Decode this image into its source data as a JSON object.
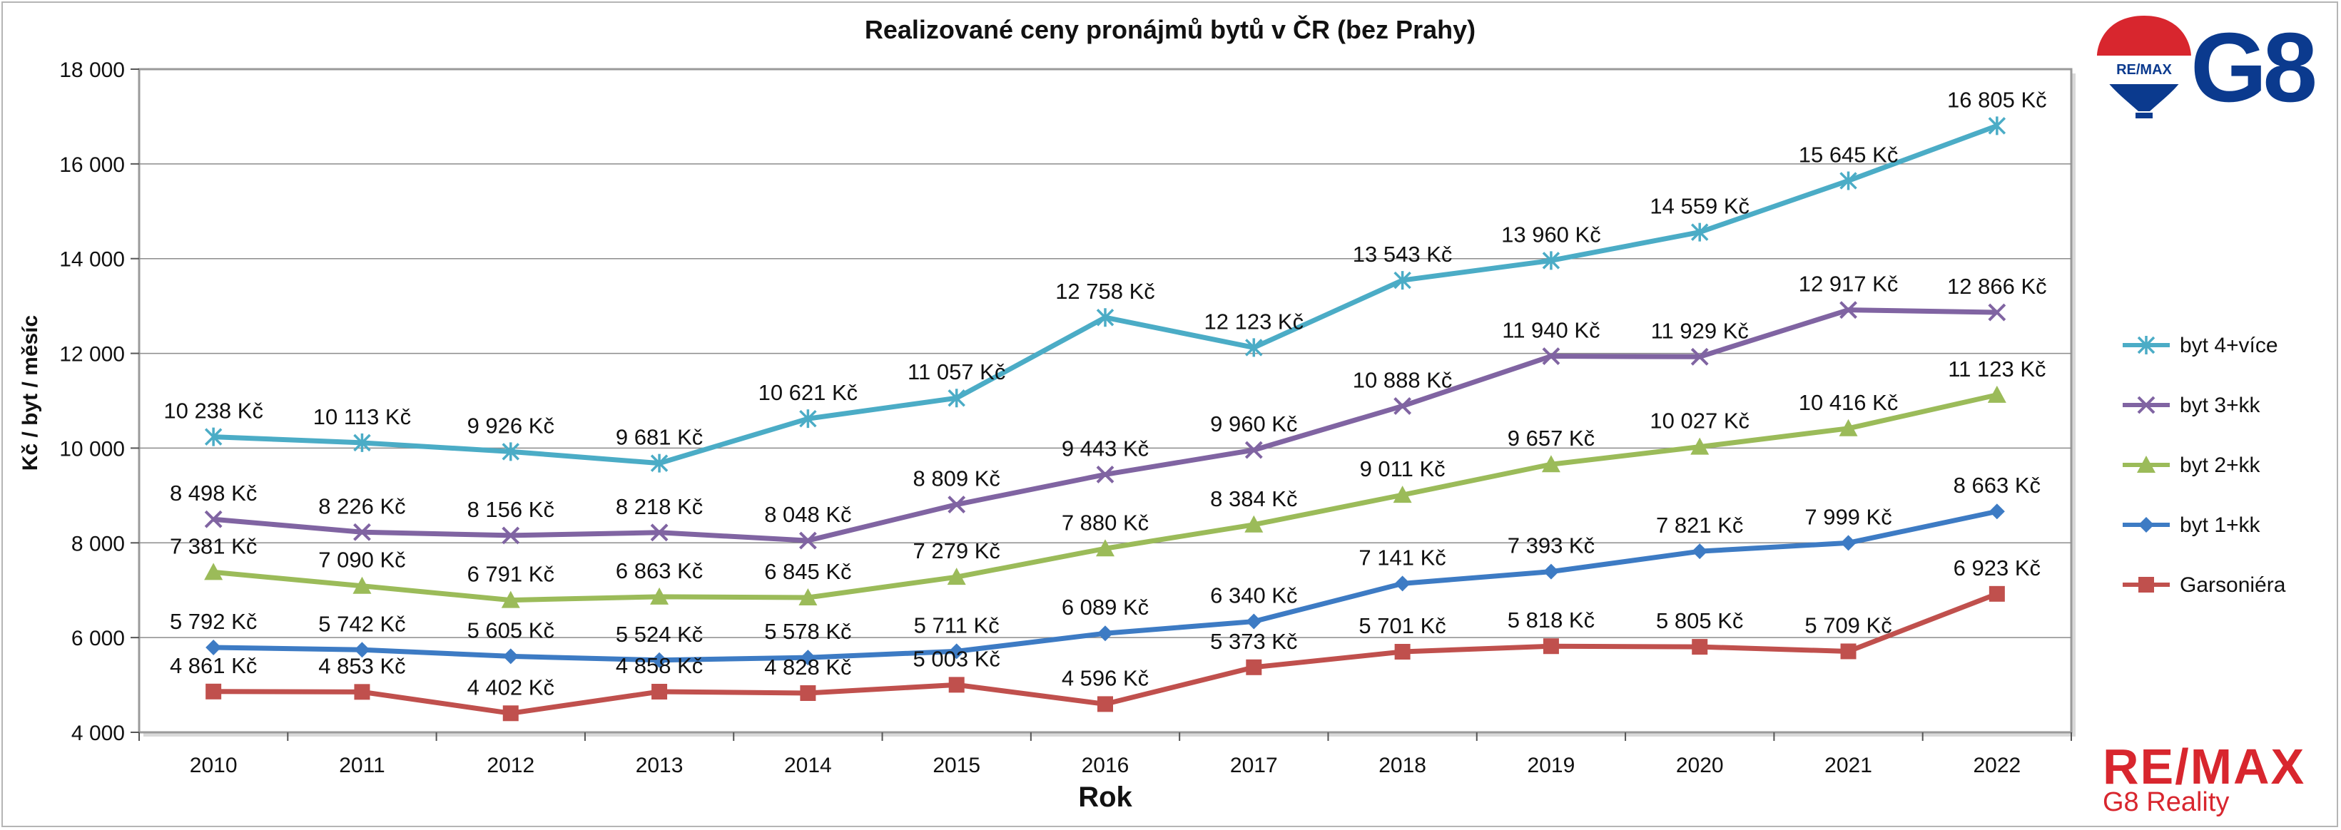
{
  "brand": {
    "top_text": "G8",
    "balloon_text": "RE/MAX",
    "bottom_text": "RE/MAX",
    "bottom_sub": "G8 Reality",
    "colors": {
      "remax_red": "#d8262e",
      "remax_blue": "#0b3a8e"
    }
  },
  "chart_data": {
    "type": "line",
    "title": "Realizované ceny pronájmů bytů v ČR (bez Prahy)",
    "xlabel": "Rok",
    "ylabel": "Kč / byt / měsíc",
    "ylim": [
      4000,
      18000
    ],
    "yticks": [
      4000,
      6000,
      8000,
      10000,
      12000,
      14000,
      16000,
      18000
    ],
    "ytick_labels": [
      "4 000",
      "6 000",
      "8 000",
      "10 000",
      "12 000",
      "14 000",
      "16 000",
      "18 000"
    ],
    "grid": true,
    "legend_position": "right",
    "categories": [
      "2010",
      "2011",
      "2012",
      "2013",
      "2014",
      "2015",
      "2016",
      "2017",
      "2018",
      "2019",
      "2020",
      "2021",
      "2022"
    ],
    "series": [
      {
        "name": "byt 4+více",
        "color": "#4bacc6",
        "marker": "star",
        "values": [
          10238,
          10113,
          9926,
          9681,
          10621,
          11057,
          12758,
          12123,
          13543,
          13960,
          14559,
          15645,
          16805
        ],
        "labels": [
          "10 238 Kč",
          "10 113 Kč",
          "9 926 Kč",
          "9 681 Kč",
          "10 621 Kč",
          "11 057 Kč",
          "12 758 Kč",
          "12 123 Kč",
          "13 543 Kč",
          "13 960 Kč",
          "14 559 Kč",
          "15 645 Kč",
          "16 805 Kč"
        ]
      },
      {
        "name": "byt 3+kk",
        "color": "#8064a2",
        "marker": "x",
        "values": [
          8498,
          8226,
          8156,
          8218,
          8048,
          8809,
          9443,
          9960,
          10888,
          11940,
          11929,
          12917,
          12866
        ],
        "labels": [
          "8 498 Kč",
          "8 226 Kč",
          "8 156 Kč",
          "8 218 Kč",
          "8 048 Kč",
          "8 809 Kč",
          "9 443 Kč",
          "9 960 Kč",
          "10 888 Kč",
          "11 940 Kč",
          "11 929 Kč",
          "12 917 Kč",
          "12 866 Kč"
        ]
      },
      {
        "name": "byt 2+kk",
        "color": "#9bbb59",
        "marker": "triangle",
        "values": [
          7381,
          7090,
          6791,
          6863,
          6845,
          7279,
          7880,
          8384,
          9011,
          9657,
          10027,
          10416,
          11123
        ],
        "labels": [
          "7 381 Kč",
          "7 090 Kč",
          "6 791 Kč",
          "6 863 Kč",
          "6 845 Kč",
          "7 279 Kč",
          "7 880 Kč",
          "8 384 Kč",
          "9 011 Kč",
          "9 657 Kč",
          "10 027 Kč",
          "10 416 Kč",
          "11 123 Kč"
        ]
      },
      {
        "name": "byt 1+kk",
        "color": "#3d7bc4",
        "marker": "diamond",
        "values": [
          5792,
          5742,
          5605,
          5524,
          5578,
          5711,
          6089,
          6340,
          7141,
          7393,
          7821,
          7999,
          8663
        ],
        "labels": [
          "5 792 Kč",
          "5 742 Kč",
          "5 605 Kč",
          "5 524 Kč",
          "5 578 Kč",
          "5 711 Kč",
          "6 089 Kč",
          "6 340 Kč",
          "7 141 Kč",
          "7 393 Kč",
          "7 821 Kč",
          "7 999 Kč",
          "8 663 Kč"
        ]
      },
      {
        "name": "Garsoniéra",
        "color": "#c0504d",
        "marker": "square",
        "values": [
          4861,
          4853,
          4402,
          4858,
          4828,
          5003,
          4596,
          5373,
          5701,
          5818,
          5805,
          5709,
          6923
        ],
        "labels": [
          "4 861 Kč",
          "4 853 Kč",
          "4 402 Kč",
          "4 858 Kč",
          "4 828 Kč",
          "5 003 Kč",
          "4 596 Kč",
          "5 373 Kč",
          "5 701 Kč",
          "5 818 Kč",
          "5 805 Kč",
          "5 709 Kč",
          "6 923 Kč"
        ]
      }
    ]
  }
}
